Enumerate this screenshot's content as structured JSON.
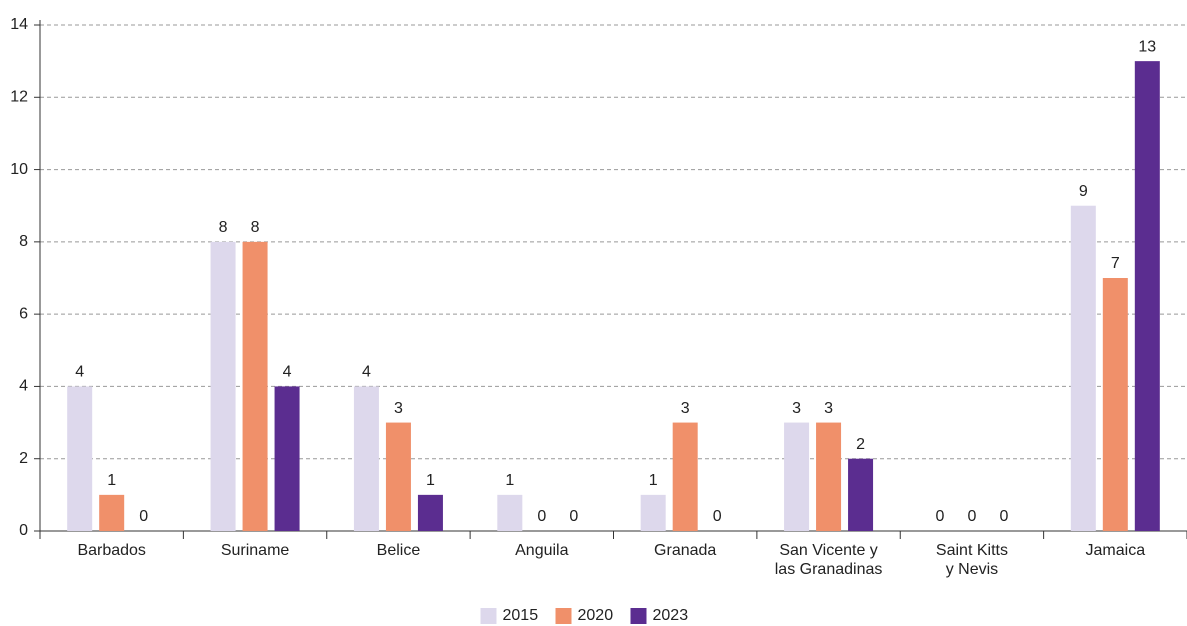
{
  "chart_data": {
    "type": "bar",
    "categories": [
      "Barbados",
      "Suriname",
      "Belice",
      "Anguila",
      "Granada",
      "San Vicente y\nlas Granadinas",
      "Saint Kitts\ny Nevis",
      "Jamaica"
    ],
    "series": [
      {
        "name": "2015",
        "color": "#ddd8ec",
        "values": [
          4,
          8,
          4,
          1,
          1,
          3,
          0,
          9
        ]
      },
      {
        "name": "2020",
        "color": "#f0906a",
        "values": [
          1,
          8,
          3,
          0,
          3,
          3,
          0,
          7
        ]
      },
      {
        "name": "2023",
        "color": "#5b2d90",
        "values": [
          0,
          4,
          1,
          0,
          0,
          2,
          0,
          13
        ]
      }
    ],
    "ylim": [
      0,
      14
    ],
    "yticks": [
      0,
      2,
      4,
      6,
      8,
      10,
      12,
      14
    ],
    "grid": true,
    "legend": "bottom"
  }
}
